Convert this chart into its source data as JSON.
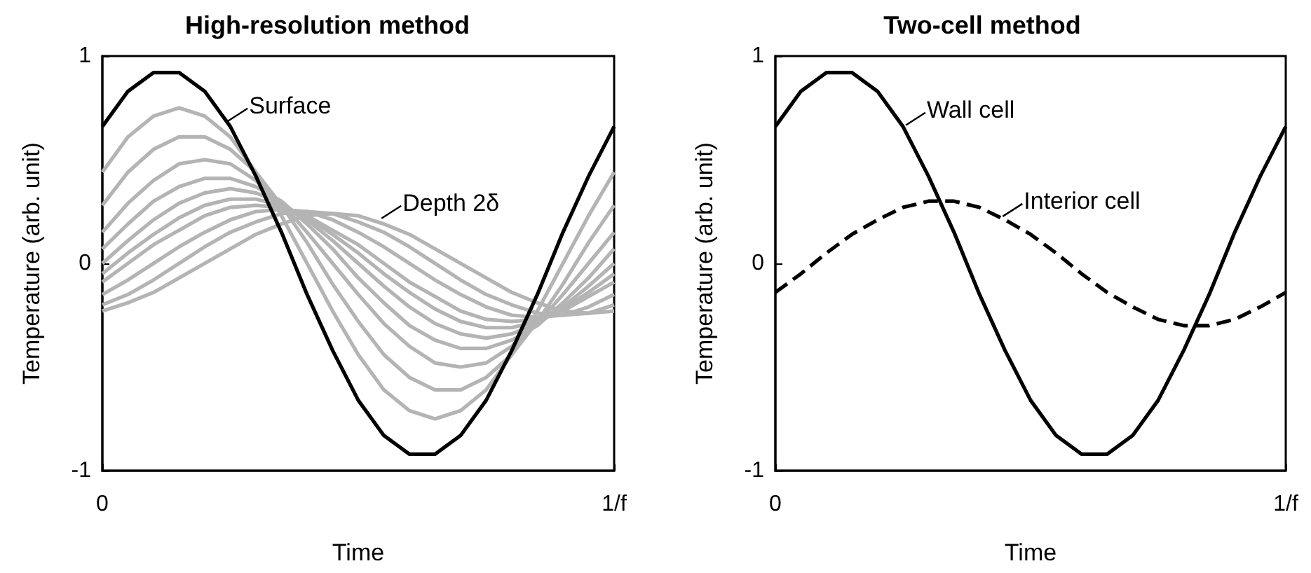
{
  "chart_data": [
    {
      "type": "line",
      "title": "High-resolution method",
      "xlabel": "Time",
      "ylabel": "Temperature (arb. unit)",
      "x": [
        0,
        0.05,
        0.1,
        0.15,
        0.2,
        0.25,
        0.3,
        0.35,
        0.4,
        0.45,
        0.5,
        0.55,
        0.6,
        0.65,
        0.7,
        0.75,
        0.8,
        0.85,
        0.9,
        0.95,
        1
      ],
      "xlim": [
        0,
        1
      ],
      "xticks": [
        0,
        {
          "value": 1,
          "label": "1/f"
        }
      ],
      "ylim": [
        -1,
        1
      ],
      "yticks": [
        -1,
        0,
        1
      ],
      "series": [
        {
          "color": "#b4b4b4",
          "values": [
            -0.23,
            -0.19,
            -0.14,
            -0.07,
            0,
            0.07,
            0.14,
            0.19,
            0.23,
            0.24,
            0.23,
            0.19,
            0.14,
            0.07,
            0,
            -0.07,
            -0.14,
            -0.19,
            -0.23,
            -0.24,
            -0.23
          ]
        },
        {
          "color": "#b4b4b4",
          "values": [
            -0.2,
            -0.15,
            -0.08,
            0,
            0.08,
            0.15,
            0.2,
            0.24,
            0.25,
            0.24,
            0.2,
            0.15,
            0.08,
            0,
            -0.08,
            -0.15,
            -0.2,
            -0.24,
            -0.25,
            -0.24,
            -0.2
          ]
        },
        {
          "color": "#b4b4b4",
          "values": [
            -0.15,
            -0.08,
            0,
            0.08,
            0.15,
            0.21,
            0.25,
            0.26,
            0.25,
            0.21,
            0.15,
            0.08,
            0,
            -0.08,
            -0.15,
            -0.21,
            -0.25,
            -0.26,
            -0.25,
            -0.21,
            -0.15
          ]
        },
        {
          "color": "#b4b4b4",
          "values": [
            -0.09,
            0,
            0.09,
            0.16,
            0.23,
            0.27,
            0.28,
            0.27,
            0.23,
            0.16,
            0.09,
            0,
            -0.09,
            -0.16,
            -0.23,
            -0.27,
            -0.28,
            -0.27,
            -0.23,
            -0.16,
            -0.09
          ]
        },
        {
          "color": "#b4b4b4",
          "values": [
            -0.05,
            0.05,
            0.14,
            0.22,
            0.28,
            0.31,
            0.31,
            0.28,
            0.22,
            0.14,
            0.05,
            -0.05,
            -0.14,
            -0.22,
            -0.28,
            -0.31,
            -0.31,
            -0.28,
            -0.22,
            -0.14,
            -0.05
          ]
        },
        {
          "color": "#b4b4b4",
          "values": [
            0,
            0.11,
            0.21,
            0.29,
            0.34,
            0.36,
            0.34,
            0.29,
            0.21,
            0.11,
            0,
            -0.11,
            -0.21,
            -0.29,
            -0.34,
            -0.36,
            -0.34,
            -0.29,
            -0.21,
            -0.11,
            0
          ]
        },
        {
          "color": "#b4b4b4",
          "values": [
            0.07,
            0.19,
            0.3,
            0.37,
            0.41,
            0.41,
            0.37,
            0.3,
            0.19,
            0.07,
            -0.07,
            -0.19,
            -0.3,
            -0.37,
            -0.41,
            -0.41,
            -0.37,
            -0.3,
            -0.19,
            -0.07,
            0.07
          ]
        },
        {
          "color": "#b4b4b4",
          "values": [
            0.15,
            0.29,
            0.4,
            0.48,
            0.5,
            0.48,
            0.4,
            0.29,
            0.15,
            0,
            -0.15,
            -0.29,
            -0.4,
            -0.48,
            -0.5,
            -0.48,
            -0.4,
            -0.29,
            -0.15,
            0,
            0.15
          ]
        },
        {
          "color": "#b4b4b4",
          "values": [
            0.28,
            0.44,
            0.55,
            0.61,
            0.61,
            0.55,
            0.44,
            0.28,
            0.1,
            -0.1,
            -0.28,
            -0.44,
            -0.55,
            -0.61,
            -0.61,
            -0.55,
            -0.44,
            -0.28,
            -0.1,
            0.1,
            0.28
          ]
        },
        {
          "color": "#b4b4b4",
          "values": [
            0.44,
            0.61,
            0.71,
            0.75,
            0.71,
            0.61,
            0.44,
            0.23,
            0,
            -0.23,
            -0.44,
            -0.61,
            -0.71,
            -0.75,
            -0.71,
            -0.61,
            -0.44,
            -0.23,
            0,
            0.23,
            0.44
          ]
        },
        {
          "color": "#000000",
          "values": [
            0.66,
            0.83,
            0.92,
            0.92,
            0.83,
            0.66,
            0.42,
            0.15,
            -0.15,
            -0.42,
            -0.66,
            -0.83,
            -0.92,
            -0.92,
            -0.83,
            -0.66,
            -0.42,
            -0.15,
            0.15,
            0.42,
            0.66
          ]
        }
      ],
      "annotations": [
        {
          "text": "Surface",
          "x": 0.24,
          "y": 0.68
        },
        {
          "text": "Depth 2δ",
          "x": 0.54,
          "y": 0.21
        }
      ]
    },
    {
      "type": "line",
      "title": "Two-cell method",
      "xlabel": "Time",
      "ylabel": "Temperature (arb. unit)",
      "x": [
        0,
        0.05,
        0.1,
        0.15,
        0.2,
        0.25,
        0.3,
        0.35,
        0.4,
        0.45,
        0.5,
        0.55,
        0.6,
        0.65,
        0.7,
        0.75,
        0.8,
        0.85,
        0.9,
        0.95,
        1
      ],
      "xlim": [
        0,
        1
      ],
      "xticks": [
        0,
        {
          "value": 1,
          "label": "1/f"
        }
      ],
      "ylim": [
        -1,
        1
      ],
      "yticks": [
        -1,
        0,
        1
      ],
      "series": [
        {
          "color": "#000000",
          "values": [
            0.66,
            0.83,
            0.92,
            0.92,
            0.83,
            0.66,
            0.42,
            0.15,
            -0.15,
            -0.42,
            -0.66,
            -0.83,
            -0.92,
            -0.92,
            -0.83,
            -0.66,
            -0.42,
            -0.15,
            0.15,
            0.42,
            0.66
          ]
        },
        {
          "color": "#000000",
          "line_style": "dashed",
          "values": [
            -0.14,
            -0.05,
            0.05,
            0.14,
            0.21,
            0.27,
            0.3,
            0.3,
            0.27,
            0.21,
            0.14,
            0.05,
            -0.05,
            -0.14,
            -0.21,
            -0.27,
            -0.3,
            -0.3,
            -0.27,
            -0.21,
            -0.14
          ]
        }
      ],
      "annotations": [
        {
          "text": "Wall cell",
          "x": 0.25,
          "y": 0.66
        },
        {
          "text": "Interior cell",
          "x": 0.44,
          "y": 0.22
        }
      ]
    }
  ]
}
